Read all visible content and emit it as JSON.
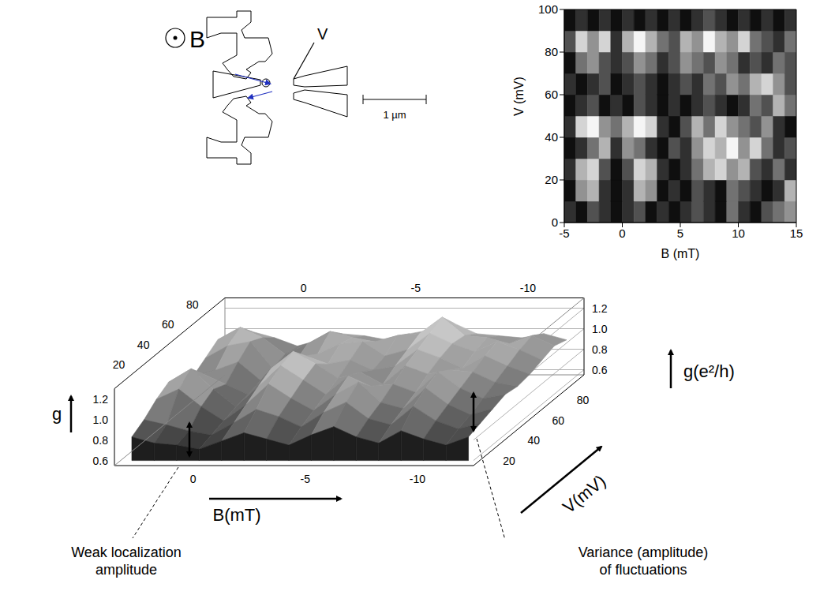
{
  "schematic": {
    "field_label": "B",
    "probe_label": "V",
    "scale_label": "1 µm"
  },
  "chart_data": [
    {
      "type": "heatmap",
      "xlabel": "B (mT)",
      "ylabel": "V (mV)",
      "xlim": [
        -5,
        15
      ],
      "ylim": [
        0,
        100
      ],
      "xticks": [
        -5,
        0,
        5,
        10,
        15
      ],
      "yticks": [
        0,
        20,
        40,
        60,
        80,
        100
      ],
      "x_edges": [
        -5,
        -4,
        -3,
        -2,
        -1,
        0,
        1,
        2,
        3,
        4,
        5,
        6,
        7,
        8,
        9,
        10,
        11,
        12,
        13,
        14,
        15
      ],
      "y_edges": [
        0,
        10,
        20,
        30,
        40,
        50,
        60,
        70,
        80,
        90,
        100
      ],
      "cells": [
        [
          0.3,
          0.2,
          0.4,
          0.3,
          0.2,
          0.3,
          0.4,
          0.2,
          0.3,
          0.2,
          0.3,
          0.4,
          0.3,
          0.2,
          0.5,
          0.3,
          0.2,
          0.4,
          0.5,
          0.6
        ],
        [
          0.2,
          0.6,
          0.7,
          0.3,
          0.2,
          0.3,
          0.7,
          0.6,
          0.2,
          0.3,
          0.2,
          0.4,
          0.3,
          0.2,
          0.5,
          0.4,
          0.3,
          0.2,
          0.3,
          0.7
        ],
        [
          0.3,
          0.7,
          0.8,
          0.4,
          0.2,
          0.4,
          0.8,
          0.7,
          0.3,
          0.2,
          0.3,
          0.5,
          0.7,
          0.8,
          0.6,
          0.7,
          0.4,
          0.3,
          0.5,
          0.3
        ],
        [
          0.2,
          0.3,
          0.5,
          0.7,
          0.3,
          0.6,
          0.5,
          0.3,
          0.2,
          0.4,
          0.3,
          0.6,
          0.8,
          0.7,
          0.9,
          0.6,
          0.8,
          0.5,
          0.3,
          0.4
        ],
        [
          0.3,
          0.8,
          0.9,
          0.6,
          0.5,
          0.7,
          0.9,
          0.8,
          0.3,
          0.2,
          0.4,
          0.7,
          0.5,
          0.8,
          0.6,
          0.5,
          0.4,
          0.6,
          0.3,
          0.2
        ],
        [
          0.2,
          0.3,
          0.4,
          0.2,
          0.3,
          0.2,
          0.4,
          0.3,
          0.2,
          0.3,
          0.2,
          0.3,
          0.4,
          0.3,
          0.2,
          0.3,
          0.5,
          0.4,
          0.7,
          0.5
        ],
        [
          0.3,
          0.2,
          0.3,
          0.4,
          0.2,
          0.3,
          0.4,
          0.3,
          0.2,
          0.3,
          0.4,
          0.3,
          0.5,
          0.4,
          0.6,
          0.5,
          0.7,
          0.8,
          0.6,
          0.4
        ],
        [
          0.2,
          0.5,
          0.6,
          0.4,
          0.3,
          0.4,
          0.6,
          0.5,
          0.3,
          0.4,
          0.6,
          0.5,
          0.4,
          0.6,
          0.5,
          0.3,
          0.4,
          0.3,
          0.5,
          0.4
        ],
        [
          0.4,
          0.8,
          0.6,
          0.8,
          0.3,
          0.7,
          0.9,
          0.7,
          0.5,
          0.4,
          0.7,
          0.6,
          0.9,
          0.7,
          0.6,
          0.8,
          0.5,
          0.4,
          0.3,
          0.5
        ],
        [
          0.2,
          0.3,
          0.2,
          0.3,
          0.2,
          0.3,
          0.2,
          0.3,
          0.2,
          0.3,
          0.2,
          0.3,
          0.4,
          0.3,
          0.2,
          0.3,
          0.2,
          0.3,
          0.2,
          0.3
        ]
      ]
    },
    {
      "type": "surface",
      "xlabel": "B(mT)",
      "ylabel": "V(mV)",
      "zlabel": "g",
      "zlabel_right": "g(e²/h)",
      "xlim": [
        3.5,
        -12.5
      ],
      "ylim": [
        5,
        95
      ],
      "zlim": [
        0.55,
        1.3
      ],
      "xticks": [
        0,
        -5,
        -10
      ],
      "yticks": [
        20,
        40,
        60,
        80
      ],
      "zticks": [
        0.6,
        0.8,
        {
          "value": 1,
          "label": "1.0"
        },
        1.2
      ],
      "x": [
        3,
        2,
        1,
        0,
        -1,
        -2,
        -3,
        -4,
        -5,
        -6,
        -7,
        -8,
        -9,
        -10,
        -11,
        -12
      ],
      "y": [
        10,
        20,
        30,
        40,
        50,
        60,
        70,
        80,
        90
      ],
      "z": [
        [
          0.78,
          0.72,
          0.7,
          0.66,
          0.74,
          0.82,
          0.76,
          0.7,
          0.8,
          0.88,
          0.78,
          0.72,
          0.84,
          0.76,
          0.7,
          0.78
        ],
        [
          0.85,
          0.8,
          0.74,
          0.7,
          0.82,
          0.95,
          0.88,
          0.78,
          0.92,
          1.02,
          0.86,
          0.8,
          0.98,
          0.84,
          0.76,
          0.82
        ],
        [
          0.95,
          1.05,
          0.88,
          0.74,
          0.9,
          1.1,
          0.96,
          0.84,
          1.0,
          1.12,
          0.92,
          0.86,
          1.06,
          0.9,
          0.8,
          0.86
        ],
        [
          1.02,
          1.15,
          0.95,
          0.78,
          0.98,
          1.18,
          1.04,
          0.9,
          1.08,
          0.98,
          1.0,
          0.92,
          1.12,
          0.96,
          0.86,
          0.9
        ],
        [
          0.92,
          1.0,
          0.9,
          0.8,
          1.05,
          1.22,
          1.1,
          0.96,
          1.02,
          0.9,
          1.08,
          1.0,
          1.04,
          1.02,
          0.92,
          0.88
        ],
        [
          0.88,
          0.94,
          1.02,
          0.84,
          0.96,
          1.08,
          1.0,
          1.04,
          0.94,
          0.98,
          1.14,
          1.06,
          0.96,
          1.08,
          0.98,
          0.9
        ],
        [
          0.96,
          1.08,
          1.12,
          0.86,
          0.92,
          1.0,
          1.1,
          1.12,
          0.98,
          1.04,
          1.2,
          1.1,
          1.02,
          1.12,
          1.04,
          0.94
        ],
        [
          1.04,
          1.16,
          1.06,
          0.9,
          1.0,
          1.12,
          1.06,
          1.02,
          1.08,
          1.1,
          1.26,
          1.08,
          1.06,
          1.0,
          1.08,
          0.98
        ],
        [
          0.94,
          1.02,
          0.96,
          0.88,
          0.94,
          1.0,
          0.98,
          0.94,
          1.0,
          1.04,
          1.1,
          1.0,
          0.98,
          0.96,
          1.0,
          0.94
        ]
      ],
      "annotations": [
        "Weak localization amplitude",
        "Variance (amplitude) of fluctuations"
      ]
    }
  ]
}
